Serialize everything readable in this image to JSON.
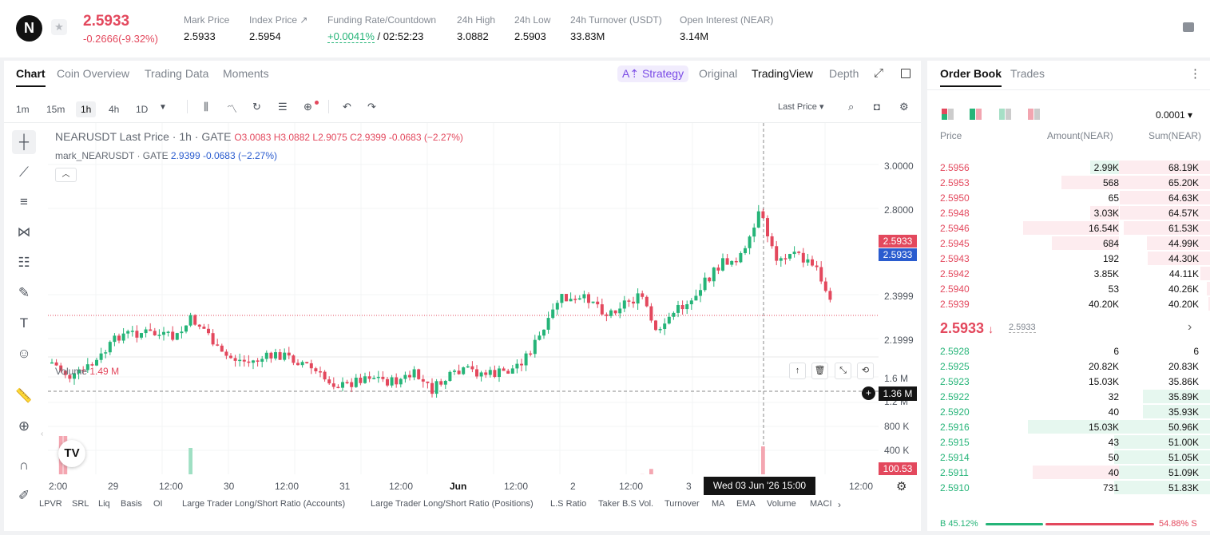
{
  "ticker": {
    "logo_text": "N",
    "last_price": "2.5933",
    "change": "-0.2666(-9.32%)",
    "stats": [
      {
        "label": "Mark Price",
        "value": "2.5933"
      },
      {
        "label": "Index Price ↗",
        "value": "2.5954"
      },
      {
        "label": "Funding Rate/Countdown",
        "value_green": "+0.0041%",
        "value": "/ 02:52:23"
      },
      {
        "label": "24h High",
        "value": "3.0882"
      },
      {
        "label": "24h Low",
        "value": "2.5903"
      },
      {
        "label": "24h Turnover (USDT)",
        "value": "33.83M"
      },
      {
        "label": "Open Interest (NEAR)",
        "value": "3.14M"
      }
    ]
  },
  "chart_tabs": [
    "Chart",
    "Coin Overview",
    "Trading Data",
    "Moments"
  ],
  "view_tabs": {
    "strategy": "A⇡ Strategy",
    "original": "Original",
    "tradingview": "TradingView",
    "depth": "Depth"
  },
  "intervals": [
    "1m",
    "15m",
    "1h",
    "4h",
    "1D"
  ],
  "last_price_selector": "Last Price ▾",
  "legend": {
    "title": "NEARUSDT Last Price · 1h · GATE",
    "ohlc": "O3.0083  H3.0882  L2.9075  C2.9399  -0.0683  (−2.27%)",
    "mark_name": "mark_NEARUSDT · GATE",
    "mark_vals": "2.9399  -0.0683  (−2.27%)",
    "volume_label": "Volume",
    "volume_value": "1.49 M"
  },
  "price_axis": [
    "3.0000",
    "2.8000",
    "2.3999",
    "2.1999"
  ],
  "volume_axis": [
    "1.6 M",
    "1.2 M",
    "800 K",
    "400 K"
  ],
  "price_tags": {
    "last": "2.5933",
    "mark": "2.5933",
    "volume": "100.53 K",
    "crosshair": "1.36 M"
  },
  "time_axis": [
    "2:00",
    "29",
    "12:00",
    "30",
    "12:00",
    "31",
    "12:00",
    "Jun",
    "12:00",
    "2",
    "12:00",
    "3",
    "12:00"
  ],
  "crosshair_time": "Wed 03 Jun '26   15:00",
  "indicators": [
    "LPVR",
    "SRL",
    "Liq",
    "Basis",
    "OI",
    "Large Trader Long/Short Ratio (Accounts)",
    "Large Trader Long/Short Ratio (Positions)",
    "L.S Ratio",
    "Taker B.S Vol.",
    "Turnover",
    "MA",
    "EMA",
    "Volume",
    "MACI"
  ],
  "colors": {
    "up": "#25b478",
    "down": "#e3485d",
    "accent": "#7b4ce6",
    "mark_blue": "#2a5ccf"
  },
  "orderbook": {
    "tabs": [
      "Order Book",
      "Trades"
    ],
    "tick": "0.0001 ▾",
    "headers": [
      "Price",
      "Amount(NEAR)",
      "Sum(NEAR)"
    ],
    "asks": [
      {
        "price": "2.5956",
        "amount": "2.99K",
        "sum": "68.19K",
        "amt_frac": 0.3,
        "sum_frac": 1.0,
        "amt_green": true
      },
      {
        "price": "2.5953",
        "amount": "568",
        "sum": "65.20K",
        "amt_frac": 0.6,
        "sum_frac": 0.95
      },
      {
        "price": "2.5950",
        "amount": "65",
        "sum": "64.63K",
        "amt_frac": 0.0,
        "sum_frac": 0.94
      },
      {
        "price": "2.5948",
        "amount": "3.03K",
        "sum": "64.57K",
        "amt_frac": 0.3,
        "sum_frac": 0.94
      },
      {
        "price": "2.5946",
        "amount": "16.54K",
        "sum": "61.53K",
        "amt_frac": 1.0,
        "sum_frac": 0.9
      },
      {
        "price": "2.5945",
        "amount": "684",
        "sum": "44.99K",
        "amt_frac": 0.7,
        "sum_frac": 0.66
      },
      {
        "price": "2.5943",
        "amount": "192",
        "sum": "44.30K",
        "amt_frac": 0.0,
        "sum_frac": 0.65
      },
      {
        "price": "2.5942",
        "amount": "3.85K",
        "sum": "44.11K",
        "amt_frac": 0.0,
        "sum_frac": 0.1
      },
      {
        "price": "2.5940",
        "amount": "53",
        "sum": "40.26K",
        "amt_frac": 0.0,
        "sum_frac": 0.03
      },
      {
        "price": "2.5939",
        "amount": "40.20K",
        "sum": "40.20K",
        "amt_frac": 0.0,
        "sum_frac": 0.02
      }
    ],
    "mid_price": "2.5933",
    "mid_arrow": "↓",
    "mark_price": "2.5933",
    "bids": [
      {
        "price": "2.5928",
        "amount": "6",
        "sum": "6",
        "amt_frac": 0.0,
        "sum_frac": 0.0
      },
      {
        "price": "2.5925",
        "amount": "20.82K",
        "sum": "20.83K",
        "amt_frac": 0.0,
        "sum_frac": 0.0
      },
      {
        "price": "2.5923",
        "amount": "15.03K",
        "sum": "35.86K",
        "amt_frac": 0.0,
        "sum_frac": 0.0
      },
      {
        "price": "2.5922",
        "amount": "32",
        "sum": "35.89K",
        "amt_frac": 0.0,
        "sum_frac": 0.7
      },
      {
        "price": "2.5920",
        "amount": "40",
        "sum": "35.93K",
        "amt_frac": 0.0,
        "sum_frac": 0.7
      },
      {
        "price": "2.5916",
        "amount": "15.03K",
        "sum": "50.96K",
        "amt_frac": 0.95,
        "sum_frac": 1.0,
        "amt_green": true
      },
      {
        "price": "2.5915",
        "amount": "43",
        "sum": "51.00K",
        "amt_frac": 0.0,
        "sum_frac": 1.0
      },
      {
        "price": "2.5914",
        "amount": "50",
        "sum": "51.05K",
        "amt_frac": 0.0,
        "sum_frac": 1.0
      },
      {
        "price": "2.5911",
        "amount": "40",
        "sum": "51.09K",
        "amt_frac": 0.9,
        "sum_frac": 1.0,
        "amt_red": true
      },
      {
        "price": "2.5910",
        "amount": "731",
        "sum": "51.83K",
        "amt_frac": 0.0,
        "sum_frac": 1.0
      }
    ],
    "buy_ratio": "B 45.12%",
    "sell_ratio": "54.88% S"
  }
}
